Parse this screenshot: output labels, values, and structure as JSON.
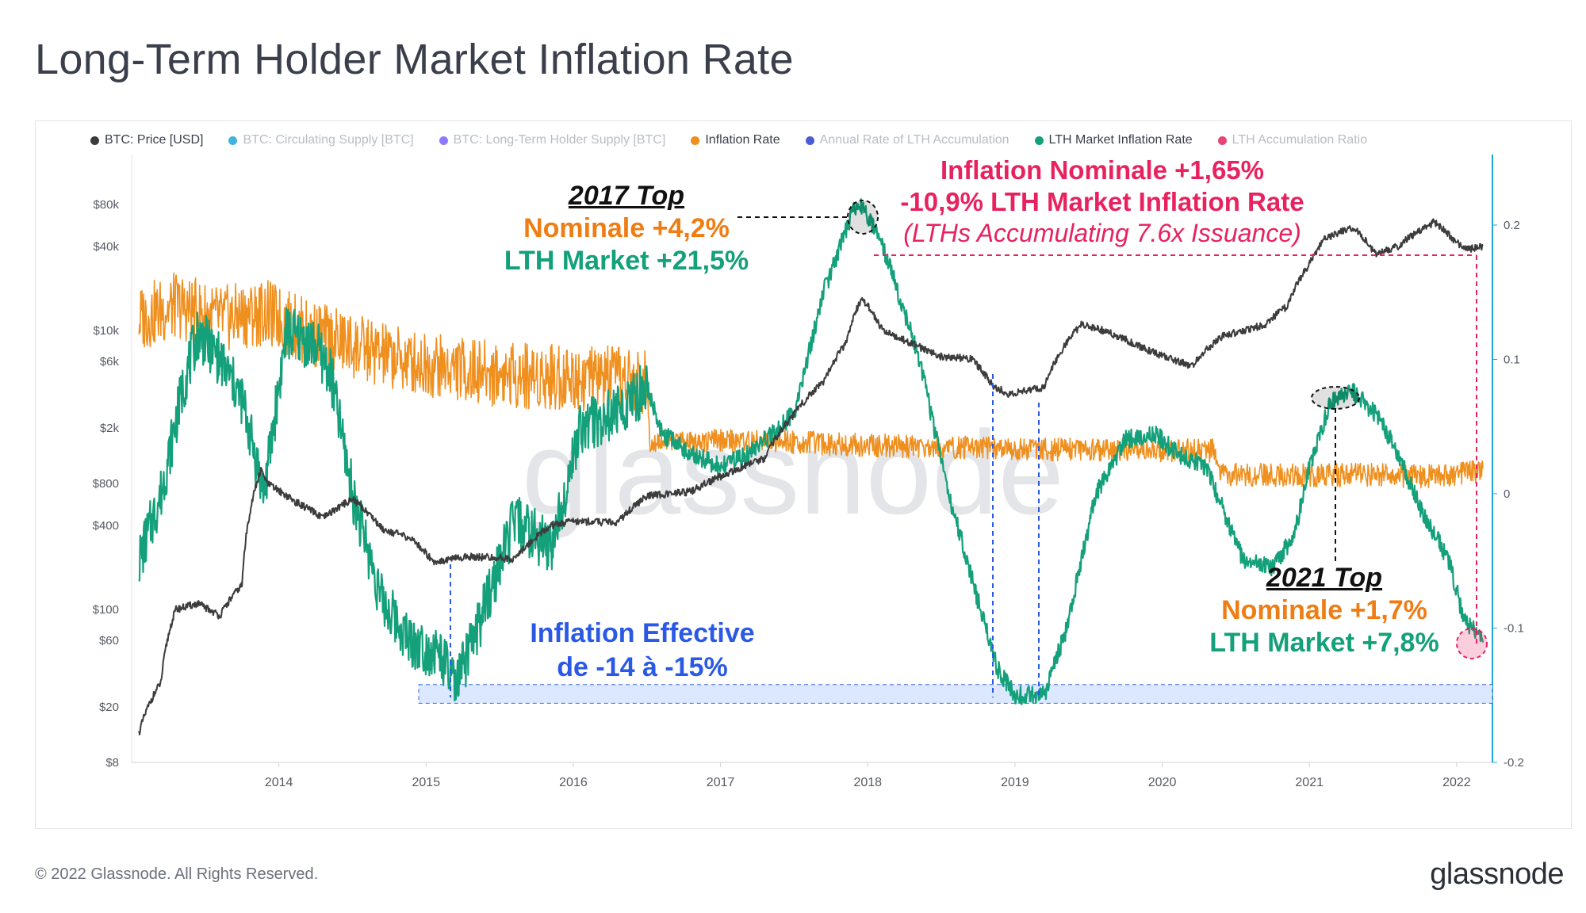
{
  "title": "Long-Term Holder Market Inflation Rate",
  "legend": [
    {
      "label": "BTC: Price [USD]",
      "color": "#3c3c3c",
      "active": true
    },
    {
      "label": "BTC: Circulating Supply [BTC]",
      "color": "#1ea7d8",
      "active": false
    },
    {
      "label": "BTC: Long-Term Holder Supply [BTC]",
      "color": "#7b61ff",
      "active": false
    },
    {
      "label": "Inflation Rate",
      "color": "#ef8f1e",
      "active": true
    },
    {
      "label": "Annual Rate of LTH Accumulation",
      "color": "#2b3ec9",
      "active": false
    },
    {
      "label": "LTH Market Inflation Rate",
      "color": "#13a07a",
      "active": true
    },
    {
      "label": "LTH Accumulation Ratio",
      "color": "#e8225f",
      "active": false
    }
  ],
  "watermark": "glassnode",
  "footer": {
    "copyright": "© 2022 Glassnode. All Rights Reserved.",
    "brand": "glassnode"
  },
  "annotations": {
    "top2017": {
      "heading": "2017 Top",
      "nominal": "Nominale +4,2%",
      "lth": "LTH Market +21,5%"
    },
    "current": {
      "line1": "Inflation Nominale +1,65%",
      "line2": "-10,9% LTH Market Inflation Rate",
      "line3": "(LTHs Accumulating 7.6x Issuance)"
    },
    "effective": {
      "line1": "Inflation Effective",
      "line2": "de -14 à -15%"
    },
    "top2021": {
      "heading": "2021 Top",
      "nominal": "Nominale +1,7%",
      "lth": "LTH Market +7,8%"
    }
  },
  "colors": {
    "price": "#3c3c3c",
    "inflation": "#ef8f1e",
    "lth": "#13a07a",
    "pink": "#e8225f",
    "blue": "#2a59e6",
    "orange_text": "#f07d14",
    "green_text": "#13a07a",
    "band": "#d9e6ff",
    "right_axis": "#1ea7d8"
  },
  "chart_data": {
    "type": "line",
    "x_ticks": [
      "2014",
      "2015",
      "2016",
      "2017",
      "2018",
      "2019",
      "2020",
      "2021",
      "2022"
    ],
    "y_left_ticks": [
      "$80k",
      "$40k",
      "$10k",
      "$6k",
      "$2k",
      "$800",
      "$400",
      "$100",
      "$60",
      "$20",
      "$8"
    ],
    "y_left_scale": "log",
    "y_right_ticks": [
      "0.2",
      "0.1",
      "0",
      "-0.1",
      "-0.2"
    ],
    "y_right_range": [
      -0.2,
      0.2
    ],
    "series": [
      {
        "name": "BTC: Price [USD]",
        "axis": "left",
        "x": [
          2013.05,
          2013.2,
          2013.3,
          2013.45,
          2013.6,
          2013.75,
          2013.88,
          2013.92,
          2014.1,
          2014.3,
          2014.5,
          2014.7,
          2014.9,
          2015.05,
          2015.3,
          2015.6,
          2015.85,
          2016.0,
          2016.3,
          2016.5,
          2016.8,
          2017.0,
          2017.3,
          2017.5,
          2017.7,
          2017.85,
          2017.96,
          2018.1,
          2018.3,
          2018.5,
          2018.7,
          2018.85,
          2018.96,
          2019.2,
          2019.45,
          2019.6,
          2019.9,
          2020.2,
          2020.4,
          2020.7,
          2020.85,
          2021.0,
          2021.1,
          2021.3,
          2021.45,
          2021.6,
          2021.85,
          2021.95,
          2022.05,
          2022.18
        ],
        "y": [
          13,
          30,
          100,
          110,
          90,
          150,
          1000,
          800,
          600,
          450,
          620,
          380,
          320,
          220,
          240,
          230,
          400,
          430,
          420,
          650,
          700,
          900,
          1200,
          2500,
          4300,
          8000,
          17000,
          10000,
          8000,
          6500,
          6300,
          4000,
          3500,
          3900,
          11000,
          10000,
          7200,
          5500,
          9000,
          11000,
          15000,
          30000,
          45000,
          55000,
          35000,
          40000,
          60000,
          48000,
          38000,
          40000
        ]
      },
      {
        "name": "Inflation Rate",
        "axis": "right",
        "x": [
          2013.05,
          2013.3,
          2013.6,
          2013.9,
          2014.2,
          2014.5,
          2014.8,
          2015.1,
          2015.4,
          2015.7,
          2016.0,
          2016.3,
          2016.5,
          2016.52,
          2016.8,
          2017.2,
          2017.6,
          2018.0,
          2018.4,
          2018.8,
          2019.2,
          2019.6,
          2020.0,
          2020.35,
          2020.38,
          2020.7,
          2021.0,
          2021.4,
          2021.8,
          2022.18
        ],
        "y": [
          0.13,
          0.14,
          0.13,
          0.135,
          0.12,
          0.11,
          0.1,
          0.095,
          0.09,
          0.088,
          0.087,
          0.085,
          0.083,
          0.04,
          0.04,
          0.039,
          0.038,
          0.036,
          0.035,
          0.034,
          0.033,
          0.033,
          0.032,
          0.032,
          0.014,
          0.014,
          0.014,
          0.014,
          0.013,
          0.0165
        ]
      },
      {
        "name": "LTH Market Inflation Rate",
        "axis": "right",
        "x": [
          2013.05,
          2013.2,
          2013.35,
          2013.45,
          2013.6,
          2013.75,
          2013.9,
          2014.05,
          2014.25,
          2014.35,
          2014.5,
          2014.7,
          2014.9,
          2015.1,
          2015.2,
          2015.35,
          2015.6,
          2015.85,
          2016.05,
          2016.3,
          2016.5,
          2016.6,
          2016.8,
          2017.0,
          2017.2,
          2017.5,
          2017.7,
          2017.9,
          2017.97,
          2018.15,
          2018.35,
          2018.55,
          2018.75,
          2018.88,
          2019.0,
          2019.2,
          2019.35,
          2019.55,
          2019.75,
          2019.95,
          2020.1,
          2020.3,
          2020.55,
          2020.75,
          2020.9,
          2021.0,
          2021.15,
          2021.3,
          2021.45,
          2021.6,
          2021.75,
          2021.95,
          2022.05,
          2022.18
        ],
        "y": [
          -0.05,
          0.0,
          0.08,
          0.12,
          0.1,
          0.07,
          0.0,
          0.12,
          0.11,
          0.09,
          0.0,
          -0.08,
          -0.11,
          -0.12,
          -0.145,
          -0.1,
          -0.02,
          -0.04,
          0.05,
          0.06,
          0.08,
          0.045,
          0.03,
          0.02,
          0.03,
          0.06,
          0.15,
          0.21,
          0.215,
          0.17,
          0.1,
          0.0,
          -0.08,
          -0.13,
          -0.15,
          -0.15,
          -0.1,
          0.0,
          0.04,
          0.045,
          0.03,
          0.02,
          -0.05,
          -0.055,
          -0.03,
          0.02,
          0.07,
          0.075,
          0.06,
          0.03,
          -0.01,
          -0.05,
          -0.095,
          -0.109
        ]
      }
    ]
  }
}
